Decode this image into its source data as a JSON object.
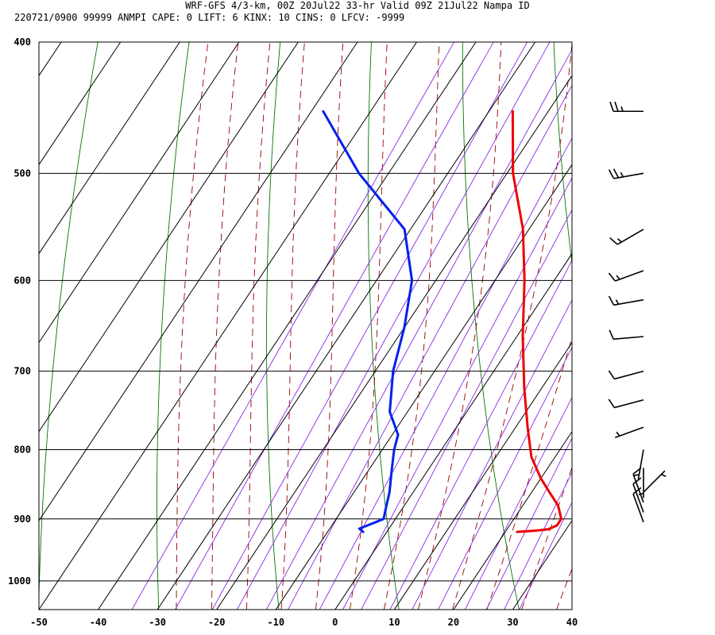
{
  "header": {
    "line1": "WRF-GFS 4/3-km, 00Z 20Jul22 33-hr Valid 09Z 21Jul22 Nampa ID",
    "line2": "220721/0900 99999  ANMPI   CAPE:     0 LIFT:     6 KINX:    10 CINS:     0 LFCV: -9999"
  },
  "colors": {
    "temperature": "#ee0000",
    "dewpoint": "#0020ee",
    "isotherm_grid": "#000000",
    "dry_adiabat": "#007700",
    "moist_adiabat": "#990000",
    "mixing_ratio": "#8a2be2",
    "wind_barb": "#000000"
  },
  "chart_data": {
    "type": "line",
    "title": "",
    "xlabel": "",
    "ylabel": "",
    "x_ticks": [
      "-50",
      "-40",
      "-30",
      "-20",
      "-10",
      "0",
      "10",
      "20",
      "30",
      "40"
    ],
    "y_ticks": [
      "400",
      "500",
      "600",
      "700",
      "800",
      "900",
      "1000"
    ],
    "x_range_degC": [
      -50,
      40
    ],
    "y_range_hPa": [
      400,
      1050
    ],
    "y_scale": "log",
    "isotherms_skewed": true,
    "grid": true,
    "series": [
      {
        "id": "temperature",
        "color": "#ee0000",
        "points": [
          {
            "p": 920,
            "t": 22
          },
          {
            "p": 918,
            "t": 25
          },
          {
            "p": 916,
            "t": 27
          },
          {
            "p": 910,
            "t": 28
          },
          {
            "p": 900,
            "t": 28
          },
          {
            "p": 880,
            "t": 26
          },
          {
            "p": 860,
            "t": 23
          },
          {
            "p": 840,
            "t": 20
          },
          {
            "p": 810,
            "t": 16
          },
          {
            "p": 770,
            "t": 12
          },
          {
            "p": 720,
            "t": 7
          },
          {
            "p": 660,
            "t": 1
          },
          {
            "p": 600,
            "t": -5
          },
          {
            "p": 550,
            "t": -11
          },
          {
            "p": 500,
            "t": -19
          },
          {
            "p": 450,
            "t": -26
          }
        ]
      },
      {
        "id": "dewpoint",
        "color": "#0020ee",
        "points": [
          {
            "p": 920,
            "t": -4
          },
          {
            "p": 915,
            "t": -5
          },
          {
            "p": 910,
            "t": -4
          },
          {
            "p": 900,
            "t": -2
          },
          {
            "p": 880,
            "t": -3
          },
          {
            "p": 860,
            "t": -4
          },
          {
            "p": 830,
            "t": -6
          },
          {
            "p": 800,
            "t": -8
          },
          {
            "p": 780,
            "t": -9
          },
          {
            "p": 750,
            "t": -13
          },
          {
            "p": 700,
            "t": -17
          },
          {
            "p": 650,
            "t": -20
          },
          {
            "p": 600,
            "t": -24
          },
          {
            "p": 550,
            "t": -31
          },
          {
            "p": 500,
            "t": -45
          },
          {
            "p": 450,
            "t": -58
          }
        ]
      }
    ],
    "wind_barbs": [
      {
        "p": 450,
        "direction_deg": 270,
        "speed_kt": 25
      },
      {
        "p": 500,
        "direction_deg": 260,
        "speed_kt": 25
      },
      {
        "p": 550,
        "direction_deg": 240,
        "speed_kt": 15
      },
      {
        "p": 590,
        "direction_deg": 250,
        "speed_kt": 15
      },
      {
        "p": 620,
        "direction_deg": 260,
        "speed_kt": 15
      },
      {
        "p": 660,
        "direction_deg": 265,
        "speed_kt": 10
      },
      {
        "p": 700,
        "direction_deg": 255,
        "speed_kt": 10
      },
      {
        "p": 735,
        "direction_deg": 255,
        "speed_kt": 10
      },
      {
        "p": 770,
        "direction_deg": 250,
        "speed_kt": 5
      },
      {
        "p": 800,
        "direction_deg": 190,
        "speed_kt": 5
      },
      {
        "p": 825,
        "direction_deg": 180,
        "speed_kt": 5
      },
      {
        "p": 860,
        "direction_deg": 45,
        "speed_kt": 5
      },
      {
        "p": 875,
        "direction_deg": 340,
        "speed_kt": 10
      },
      {
        "p": 890,
        "direction_deg": 340,
        "speed_kt": 10
      },
      {
        "p": 905,
        "direction_deg": 340,
        "speed_kt": 10
      }
    ]
  }
}
